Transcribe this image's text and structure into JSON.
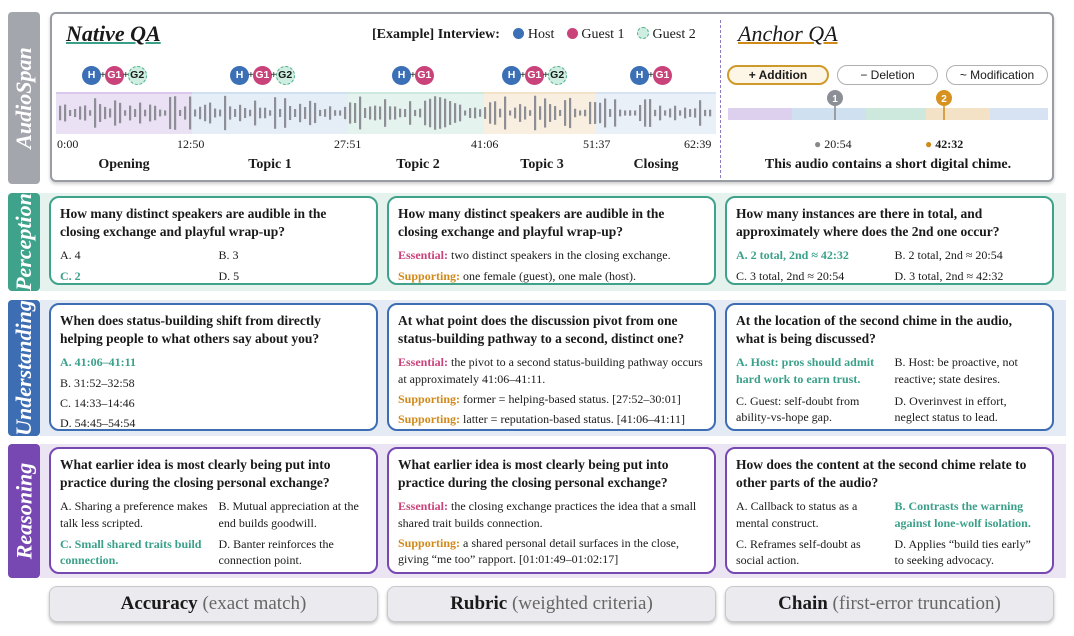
{
  "tabs": {
    "audiospan": "AudioSpan",
    "perception": "Perception",
    "understanding": "Understanding",
    "reasoning": "Reasoning"
  },
  "header": {
    "native_title": "Native QA",
    "anchor_title": "Anchor QA",
    "example_label": "[Example]",
    "interview_label": "Interview:",
    "legend": [
      {
        "name": "Host",
        "color": "#3b6fb6"
      },
      {
        "name": "Guest 1",
        "color": "#c9437a"
      },
      {
        "name": "Guest 2",
        "color": "#cfeee2"
      }
    ]
  },
  "timeline": {
    "speaker_groups": [
      [
        "H",
        "G1",
        "G2"
      ],
      [
        "H",
        "G1",
        "G2"
      ],
      [
        "H",
        "G1"
      ],
      [
        "H",
        "G1",
        "G2"
      ],
      [
        "H",
        "G1"
      ]
    ],
    "times": [
      "0:00",
      "12:50",
      "27:51",
      "41:06",
      "51:37",
      "62:39"
    ],
    "segments": [
      "Opening",
      "Topic 1",
      "Topic 2",
      "Topic 3",
      "Closing"
    ],
    "segment_colors": [
      "#d9c8ec",
      "#cfe0f0",
      "#cde9de",
      "#f3e2c6",
      "#d7e3f2"
    ]
  },
  "anchor": {
    "buttons": [
      "+ Addition",
      "− Deletion",
      "~ Modification"
    ],
    "marker1_num": "1",
    "marker1_time": "20:54",
    "marker2_num": "2",
    "marker2_time": "42:32",
    "caption": "This audio contains a short digital chime."
  },
  "cards": {
    "perception": {
      "native": {
        "question": "How many distinct speakers are audible in the closing exchange and playful wrap-up?",
        "options": [
          "A. 4",
          "B. 3",
          "C. 2",
          "D. 5"
        ]
      },
      "rubric": {
        "question": "How many distinct speakers are audible in the closing exchange and playful wrap-up?",
        "essential_label": "Essential:",
        "essential_text": "two distinct speakers in the closing exchange.",
        "supporting_label": "Supporting:",
        "supporting_text": "one female (guest), one male (host)."
      },
      "anchor": {
        "question": "How many instances are there in total, and approximately where does the 2nd one occur?",
        "options": [
          "A. 2 total, 2nd ≈ 42:32",
          "B. 2 total, 2nd ≈ 20:54",
          "C. 3 total, 2nd ≈ 20:54",
          "D. 3 total, 2nd ≈ 42:32"
        ]
      }
    },
    "understanding": {
      "native": {
        "question": "When does status-building shift from directly helping people to what others say about you?",
        "options": [
          "A. 41:06–41:11",
          "B. 31:52–32:58",
          "C. 14:33–14:46",
          "D. 54:45–54:54"
        ]
      },
      "rubric": {
        "question": "At what point does the discussion pivot from one status-building pathway to a second, distinct one?",
        "essential_label": "Essential:",
        "essential_text": "the pivot to a second status-building pathway occurs at approximately 41:06–41:11.",
        "supporting_label": "Supporting:",
        "supporting_text": "former = helping-based status. [27:52–30:01]",
        "supporting_label2": "Supporting:",
        "supporting_text2": "latter = reputation-based status. [41:06–41:11]"
      },
      "anchor": {
        "question": "At the location of the second chime in the audio, what is being discussed?",
        "options": [
          "A. Host: pros should admit hard work to earn trust.",
          "B. Host: be proactive, not reactive; state desires.",
          "C. Guest: self-doubt from ability-vs-hope gap.",
          "D. Overinvest in effort, neglect status to lead."
        ]
      }
    },
    "reasoning": {
      "native": {
        "question": "What earlier idea is most clearly being put into practice during the closing personal exchange?",
        "options": [
          "A. Sharing a preference makes talk less scripted.",
          "B. Mutual appreciation at the end builds goodwill.",
          "C. Small shared traits build connection.",
          "D. Banter reinforces the connection point."
        ]
      },
      "rubric": {
        "question": "What earlier idea is most clearly being put into practice during the closing personal exchange?",
        "essential_label": "Essential:",
        "essential_text": "the closing exchange practices the idea that a small shared trait builds connection.",
        "supporting_label": "Supporting:",
        "supporting_text": "a shared personal detail surfaces in the close, giving “me too” rapport. [01:01:49–01:02:17]"
      },
      "anchor": {
        "question": "How does the content at the second chime relate to other parts of the audio?",
        "options": [
          "A. Callback to status as a mental construct.",
          "B. Contrasts the warning against lone-wolf isolation.",
          "C. Reframes self-doubt as social action.",
          "D. Applies “build ties early” to seeking advocacy."
        ]
      }
    }
  },
  "footer": {
    "accuracy_main": "Accuracy",
    "accuracy_sub": "(exact match)",
    "rubric_main": "Rubric",
    "rubric_sub": "(weighted criteria)",
    "chain_main": "Chain",
    "chain_sub": "(first-error truncation)"
  }
}
